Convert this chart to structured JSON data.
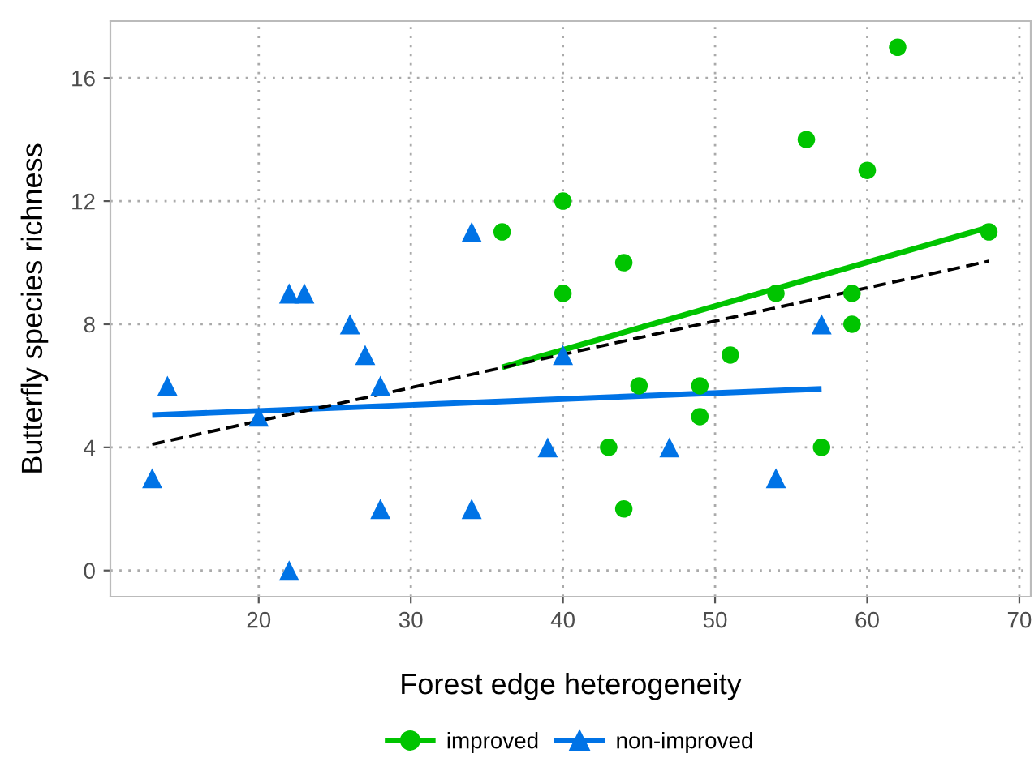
{
  "chart_data": {
    "type": "scatter",
    "xlabel": "Forest edge heterogeneity",
    "ylabel": "Butterfly species richness",
    "xlim": [
      10.25,
      70.75
    ],
    "ylim": [
      -0.85,
      17.85
    ],
    "xticks": [
      20,
      30,
      40,
      50,
      60,
      70
    ],
    "yticks": [
      0,
      4,
      8,
      12,
      16
    ],
    "grid": true,
    "legend": "bottom",
    "series": [
      {
        "name": "improved",
        "color": "#00c400",
        "marker": "circle",
        "x": [
          36,
          40,
          40,
          43,
          44,
          44,
          45,
          49,
          49,
          51,
          54,
          56,
          57,
          59,
          59,
          60,
          62,
          68
        ],
        "values": [
          11,
          12,
          9,
          4,
          10,
          2,
          6,
          6,
          5,
          7,
          9,
          14,
          4,
          9,
          8,
          13,
          17,
          11
        ]
      },
      {
        "name": "non-improved",
        "color": "#0073e6",
        "marker": "triangle",
        "x": [
          13,
          14,
          20,
          22,
          23,
          22,
          26,
          27,
          28,
          28,
          34,
          34,
          39,
          40,
          47,
          54,
          57
        ],
        "values": [
          3,
          6,
          5,
          9,
          9,
          0,
          8,
          7,
          6,
          2,
          11,
          2,
          4,
          7,
          4,
          3,
          8
        ]
      },
      {
        "type": "line",
        "color": "#00c400",
        "line_style": "solid",
        "x": [
          36,
          68
        ],
        "values": [
          6.6,
          11.15
        ]
      },
      {
        "type": "line",
        "color": "#0073e6",
        "line_style": "solid",
        "x": [
          13,
          57
        ],
        "values": [
          5.05,
          5.9
        ]
      },
      {
        "type": "line",
        "color": "#000000",
        "line_style": "dashed",
        "x": [
          13,
          68
        ],
        "values": [
          4.1,
          10.05
        ]
      }
    ]
  }
}
